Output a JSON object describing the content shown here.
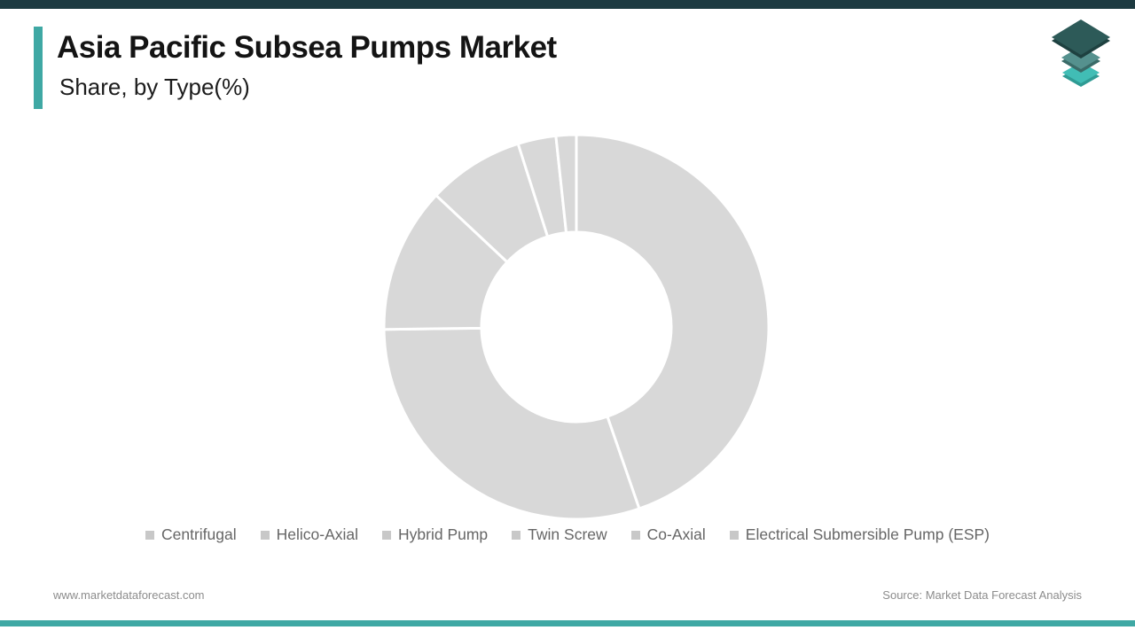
{
  "header": {
    "title": "Asia Pacific Subsea Pumps Market",
    "subtitle": "Share, by Type(%)",
    "top_bar_color": "#1d3a41",
    "accent_bar_color": "#3fa8a4"
  },
  "logo": {
    "name": "market-data-forecast-logo",
    "layer_colors": [
      "#2d5a58",
      "#55918e",
      "#41bdb5"
    ],
    "layer_edge_colors": [
      "#1e4140",
      "#3a6b68",
      "#2f9b94"
    ]
  },
  "chart_data": {
    "type": "pie",
    "subtype": "donut",
    "title": "Asia Pacific Subsea Pumps Market Share, by Type(%)",
    "unit": "%",
    "categories": [
      "Centrifugal",
      "Helico-Axial",
      "Hybrid Pump",
      "Twin Screw",
      "Co-Axial",
      "Electrical Submersible Pump (ESP)"
    ],
    "values": [
      44.7,
      30.1,
      12.2,
      8.1,
      3.2,
      1.7
    ],
    "start_angle_deg": 0,
    "direction": "clockwise",
    "slice_color": "#d8d8d8",
    "slice_border_color": "#ffffff",
    "legend_position": "bottom",
    "legend_marker_color": "#c8c8c8",
    "legend_text_color": "#666666"
  },
  "footer": {
    "website": "www.marketdataforecast.com",
    "source": "Source: Market Data Forecast Analysis",
    "bottom_bar_color": "#3fa8a4"
  }
}
